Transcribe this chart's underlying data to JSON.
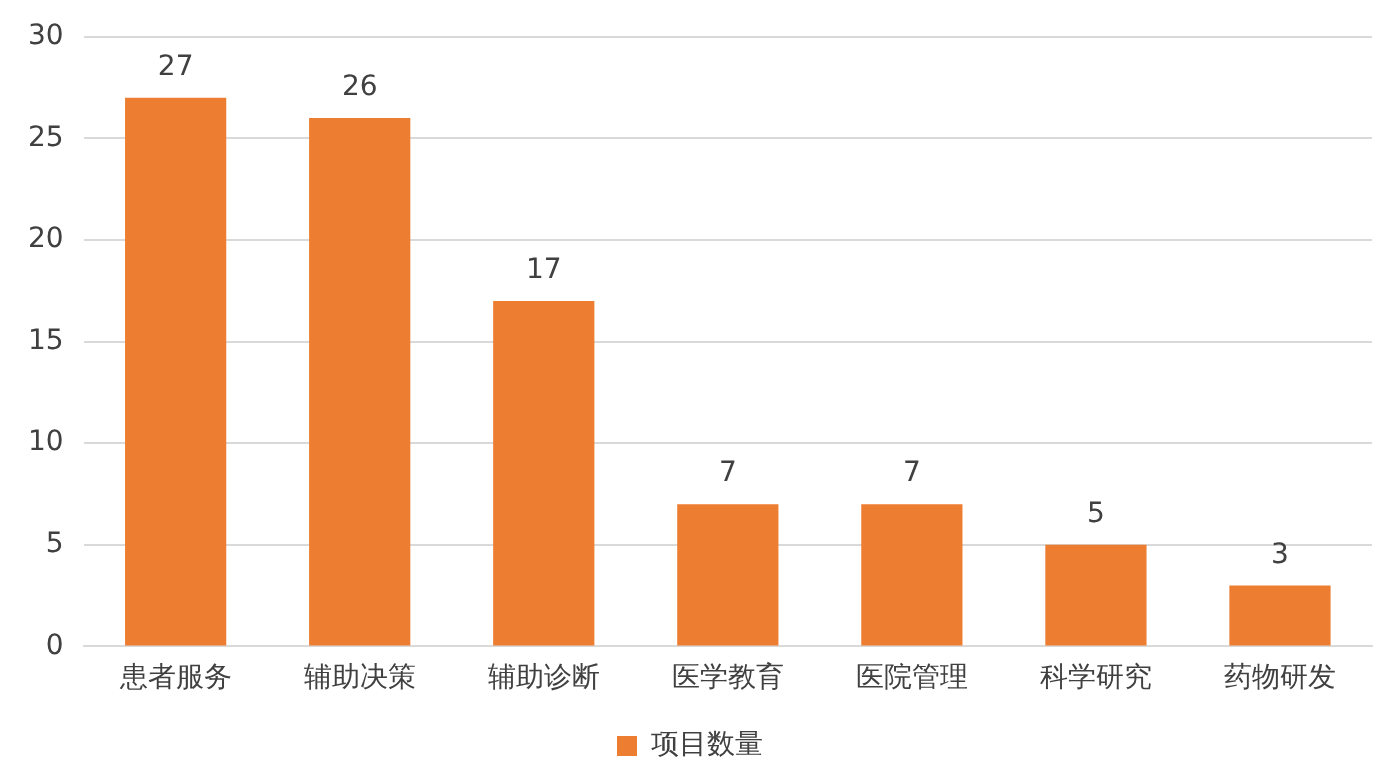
{
  "chart_data": {
    "type": "bar",
    "categories": [
      "患者服务",
      "辅助决策",
      "辅助诊断",
      "医学教育",
      "医院管理",
      "科学研究",
      "药物研发"
    ],
    "series": [
      {
        "name": "项目数量",
        "color": "#ed7d31",
        "values": [
          27,
          26,
          17,
          7,
          7,
          5,
          3
        ]
      }
    ],
    "ylim": [
      0,
      30
    ],
    "yticks": [
      0,
      5,
      10,
      15,
      20,
      25,
      30
    ],
    "grid": "y",
    "legend": "bottom",
    "data_labels": true
  }
}
